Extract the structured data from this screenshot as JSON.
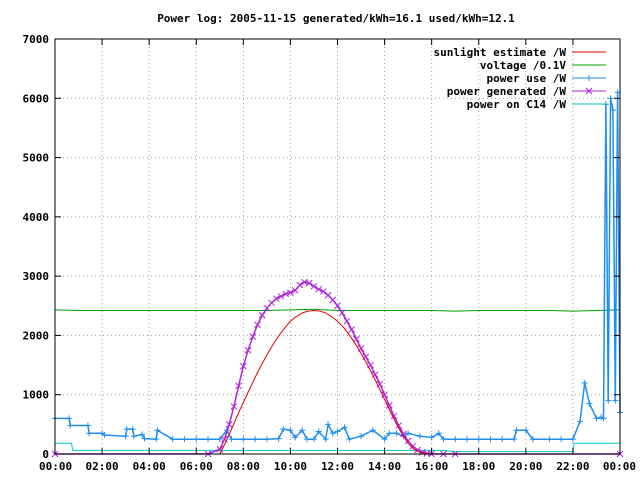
{
  "chart_data": {
    "type": "line",
    "title": "Power log: 2005-11-15 generated/kWh=16.1 used/kWh=12.1",
    "xlabel": "",
    "ylabel": "",
    "x_unit": "hours",
    "xlim": [
      0,
      24
    ],
    "ylim": [
      0,
      7000
    ],
    "grid": true,
    "legend_position": "top-right",
    "x_tick_labels": [
      "00:00",
      "02:00",
      "04:00",
      "06:00",
      "08:00",
      "10:00",
      "12:00",
      "14:00",
      "16:00",
      "18:00",
      "20:00",
      "22:00",
      "00:00"
    ],
    "y_tick_labels": [
      "0",
      "1000",
      "2000",
      "3000",
      "4000",
      "5000",
      "6000",
      "7000"
    ],
    "series": [
      {
        "name": "sunlight estimate /W",
        "color": "#e00000",
        "style": "line",
        "x": [
          7.0,
          7.25,
          7.5,
          7.75,
          8.0,
          8.25,
          8.5,
          8.75,
          9.0,
          9.25,
          9.5,
          9.75,
          10.0,
          10.25,
          10.5,
          10.75,
          11.0,
          11.25,
          11.5,
          11.75,
          12.0,
          12.25,
          12.5,
          12.75,
          13.0,
          13.25,
          13.5,
          13.75,
          14.0,
          14.25,
          14.5,
          14.75,
          15.0,
          15.25,
          15.5,
          15.75,
          16.0,
          16.5,
          17.0
        ],
        "y": [
          0,
          200,
          420,
          650,
          870,
          1080,
          1290,
          1490,
          1670,
          1840,
          1990,
          2120,
          2240,
          2320,
          2380,
          2410,
          2420,
          2410,
          2380,
          2320,
          2240,
          2140,
          2010,
          1860,
          1700,
          1520,
          1330,
          1130,
          920,
          710,
          510,
          330,
          180,
          80,
          30,
          10,
          0,
          0,
          0
        ]
      },
      {
        "name": "voltage /0.1V",
        "color": "#00a000",
        "style": "line",
        "x": [
          0,
          1,
          2,
          3,
          4,
          5,
          6,
          7,
          8,
          9,
          10,
          11,
          12,
          13,
          14,
          15,
          16,
          17,
          18,
          19,
          20,
          21,
          22,
          23,
          24
        ],
        "y": [
          2430,
          2420,
          2420,
          2420,
          2420,
          2420,
          2420,
          2420,
          2420,
          2420,
          2430,
          2440,
          2420,
          2420,
          2420,
          2420,
          2420,
          2410,
          2420,
          2420,
          2420,
          2420,
          2410,
          2420,
          2430
        ]
      },
      {
        "name": "power use /W",
        "color": "#1e8ef0",
        "style": "linespoints-plus",
        "x": [
          0,
          0.6,
          0.65,
          1.4,
          1.45,
          2.0,
          2.1,
          3.0,
          3.05,
          3.3,
          3.35,
          3.7,
          3.8,
          4.3,
          4.35,
          5.0,
          5.5,
          6.0,
          6.5,
          7.0,
          7.3,
          7.5,
          8.0,
          8.5,
          9.0,
          9.5,
          9.7,
          10.0,
          10.2,
          10.5,
          10.7,
          11.0,
          11.2,
          11.5,
          11.6,
          11.8,
          12.0,
          12.3,
          12.5,
          13.0,
          13.5,
          14.0,
          14.2,
          14.5,
          14.8,
          15.0,
          15.5,
          16.0,
          16.3,
          16.5,
          17.0,
          17.5,
          18.0,
          18.5,
          19.0,
          19.5,
          19.6,
          20.0,
          20.3,
          21.0,
          21.5,
          22.0,
          22.3,
          22.5,
          22.7,
          23.0,
          23.2,
          23.3,
          23.4,
          23.5,
          23.6,
          23.7,
          23.8,
          23.9,
          24.0
        ],
        "y": [
          600,
          600,
          480,
          480,
          350,
          350,
          320,
          300,
          420,
          420,
          300,
          330,
          260,
          250,
          400,
          250,
          250,
          250,
          250,
          250,
          400,
          250,
          250,
          250,
          250,
          260,
          420,
          400,
          280,
          400,
          250,
          250,
          380,
          250,
          500,
          350,
          380,
          450,
          250,
          300,
          400,
          250,
          350,
          350,
          300,
          350,
          300,
          280,
          350,
          250,
          250,
          250,
          250,
          250,
          250,
          250,
          400,
          400,
          250,
          250,
          250,
          250,
          550,
          1200,
          850,
          600,
          620,
          600,
          5900,
          900,
          6000,
          5800,
          900,
          6100,
          700
        ]
      },
      {
        "name": "power generated /W",
        "color": "#b020e0",
        "style": "linespoints-x",
        "x": [
          0,
          6.5,
          7.0,
          7.2,
          7.4,
          7.6,
          7.8,
          8.0,
          8.2,
          8.4,
          8.6,
          8.8,
          9.0,
          9.2,
          9.4,
          9.6,
          9.8,
          10.0,
          10.2,
          10.4,
          10.6,
          10.8,
          11.0,
          11.2,
          11.4,
          11.6,
          11.8,
          12.0,
          12.2,
          12.4,
          12.6,
          12.8,
          13.0,
          13.2,
          13.4,
          13.6,
          13.8,
          14.0,
          14.2,
          14.4,
          14.6,
          14.8,
          15.0,
          15.2,
          15.4,
          15.6,
          15.8,
          16.0,
          16.5,
          17.0,
          24.0
        ],
        "y": [
          0,
          0,
          80,
          250,
          500,
          800,
          1150,
          1480,
          1750,
          1980,
          2180,
          2340,
          2460,
          2550,
          2620,
          2660,
          2700,
          2720,
          2760,
          2850,
          2900,
          2880,
          2830,
          2780,
          2740,
          2680,
          2600,
          2500,
          2380,
          2240,
          2100,
          1940,
          1780,
          1640,
          1500,
          1340,
          1180,
          1000,
          820,
          640,
          480,
          340,
          220,
          130,
          70,
          30,
          10,
          0,
          0,
          0,
          0
        ]
      },
      {
        "name": "power on C14 /W",
        "color": "#00c8c8",
        "style": "line",
        "x": [
          0,
          0.7,
          0.75,
          16.5,
          17.0,
          22.0,
          22.05,
          24.0
        ],
        "y": [
          180,
          180,
          60,
          60,
          40,
          40,
          180,
          180
        ]
      }
    ]
  }
}
